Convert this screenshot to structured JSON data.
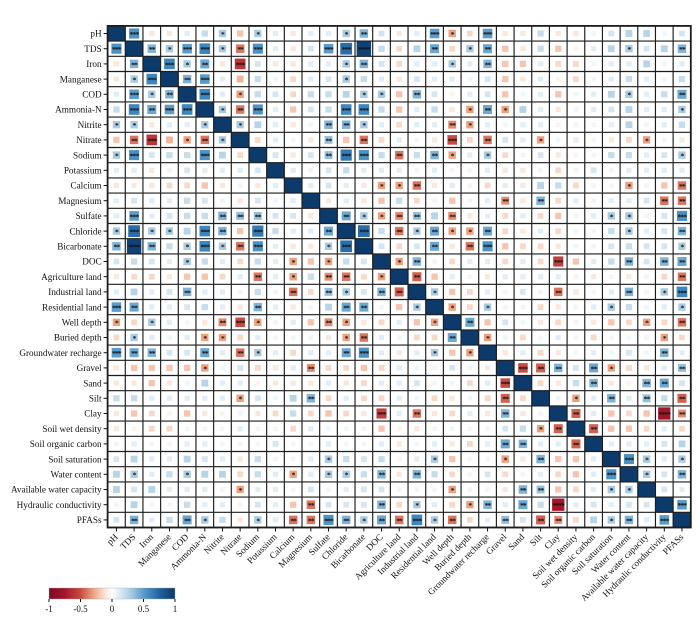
{
  "chart_data": {
    "type": "heatmap",
    "title": "",
    "subtitle": "",
    "legend": "correlation colorbar",
    "variables": [
      "pH",
      "TDS",
      "Iron",
      "Manganese",
      "COD",
      "Ammonia-N",
      "Nitrite",
      "Nitrate",
      "Sodium",
      "Potassium",
      "Calcium",
      "Magnesium",
      "Sulfate",
      "Chloride",
      "Bicarbonate",
      "DOC",
      "Agriculture land",
      "Industrial land",
      "Residential land",
      "Well depth",
      "Buried depth",
      "Groundwater recharge",
      "Gravel",
      "Sand",
      "Silt",
      "Clay",
      "Soil wet density",
      "Soil organic carbon",
      "Soil saturation",
      "Water content",
      "Available water capacity",
      "Hydraulic conductivity",
      "PFASs"
    ],
    "diagonal_value": 1,
    "matrix_upper": [
      [
        0.55,
        -0.1,
        -0.1,
        0.1,
        0.2,
        0.3,
        -0.2,
        0.3,
        0.1,
        -0.1,
        0.1,
        0.1,
        0.3,
        0.4,
        0.15,
        -0.1,
        0.1,
        0.5,
        -0.3,
        -0.15,
        0.5,
        -0.1,
        -0.1,
        0.2,
        -0.1,
        -0.1,
        0.05,
        0.15,
        0.25,
        0.25,
        0.05,
        0.15
      ],
      [
        0.4,
        0.3,
        0.5,
        0.6,
        0.3,
        -0.4,
        0.55,
        0.1,
        -0.1,
        0.15,
        0.5,
        0.7,
        0.95,
        0.2,
        -0.15,
        0.25,
        0.45,
        -0.15,
        0.3,
        0.45,
        -0.2,
        -0.1,
        0.2,
        -0.2,
        -0.05,
        0.1,
        0.25,
        0.3,
        0.15,
        0.25,
        0.4
      ],
      [
        0.6,
        0.3,
        0.45,
        -0.1,
        -0.6,
        0.15,
        -0.1,
        -0.1,
        0.1,
        0.1,
        0.3,
        0.4,
        0.15,
        -0.15,
        0.1,
        0.1,
        0.3,
        0.1,
        0.4,
        -0.2,
        -0.2,
        0.1,
        -0.15,
        -0.15,
        0.05,
        0.1,
        0.1,
        0.25,
        0.05,
        0.1
      ],
      [
        0.4,
        0.5,
        0.1,
        -0.25,
        0.2,
        0.05,
        -0.15,
        0.1,
        0.15,
        0.3,
        0.2,
        0.1,
        -0.1,
        0.15,
        0.1,
        0.1,
        0.05,
        0.15,
        -0.2,
        -0.1,
        0.1,
        -0.05,
        -0.15,
        0.05,
        0.1,
        0.2,
        0.1,
        0.05,
        0.2
      ],
      [
        0.6,
        0.1,
        -0.3,
        0.2,
        0.15,
        -0.15,
        0.2,
        0.2,
        0.25,
        0.3,
        0.3,
        -0.2,
        0.4,
        0.15,
        -0.05,
        0.1,
        0.15,
        -0.2,
        0.05,
        0.1,
        -0.2,
        0.05,
        0.1,
        0.25,
        0.3,
        0.1,
        0.2,
        0.45
      ],
      [
        0.3,
        -0.4,
        0.55,
        0.1,
        -0.2,
        0.15,
        0.2,
        0.6,
        0.6,
        0.2,
        -0.2,
        0.1,
        0.2,
        -0.1,
        -0.3,
        0.45,
        -0.3,
        0.25,
        0.1,
        -0.1,
        0.05,
        0.1,
        0.15,
        0.25,
        0.1,
        0.1,
        0.3
      ],
      [
        0.3,
        0.25,
        0.1,
        -0.1,
        0.05,
        0.4,
        0.4,
        0.3,
        0.1,
        -0.15,
        0.1,
        0.1,
        -0.35,
        -0.3,
        0.1,
        0.05,
        0.1,
        0.1,
        -0.05,
        0.05,
        0.05,
        0.1,
        0.25,
        0.05,
        0.1,
        0.2
      ],
      [
        -0.15,
        0.1,
        0.05,
        -0.1,
        0.35,
        -0.2,
        -0.4,
        -0.15,
        0.1,
        0.05,
        -0.1,
        -0.5,
        -0.15,
        -0.4,
        0.15,
        0.1,
        -0.3,
        0.05,
        0.1,
        -0.05,
        -0.1,
        -0.15,
        -0.3,
        -0.05,
        -0.1
      ],
      [
        0.15,
        -0.1,
        0.15,
        0.35,
        0.65,
        0.55,
        0.2,
        -0.4,
        0.2,
        0.4,
        -0.3,
        0.1,
        0.3,
        -0.15,
        -0.05,
        0.15,
        -0.1,
        -0.05,
        0.05,
        0.2,
        0.2,
        0.1,
        0.15,
        0.3
      ],
      [
        0.1,
        0.05,
        0.15,
        0.2,
        0.1,
        0.1,
        0.1,
        0.05,
        0.1,
        -0.05,
        0.05,
        0.1,
        -0.1,
        -0.1,
        0.05,
        -0.15,
        -0.05,
        0.15,
        0.05,
        0.1,
        0.1,
        0.1,
        0.1
      ],
      [
        0.1,
        0.15,
        0.1,
        -0.1,
        -0.3,
        -0.3,
        -0.4,
        -0.1,
        0.1,
        0.05,
        -0.15,
        0.1,
        -0.1,
        0.25,
        0.2,
        -0.15,
        0.05,
        0.05,
        -0.3,
        0.05,
        -0.2,
        -0.4
      ],
      [
        -0.1,
        0.1,
        -0.1,
        -0.2,
        0.2,
        -0.15,
        0.05,
        -0.2,
        0.05,
        0.1,
        -0.35,
        -0.1,
        0.4,
        -0.15,
        0.1,
        0.05,
        0.1,
        0.1,
        0.15,
        -0.4,
        -0.4
      ],
      [
        0.45,
        0.3,
        -0.3,
        -0.35,
        0.35,
        0.25,
        -0.35,
        -0.1,
        0.1,
        -0.15,
        0.1,
        -0.15,
        -0.2,
        0.05,
        0.1,
        0.3,
        0.3,
        0.05,
        0.15,
        0.55
      ],
      [
        0.7,
        0.2,
        -0.4,
        0.3,
        0.45,
        -0.3,
        -0.3,
        0.45,
        -0.15,
        -0.1,
        0.1,
        -0.15,
        0.05,
        0.05,
        0.2,
        0.3,
        0.1,
        0.15,
        0.4
      ],
      [
        0.15,
        -0.15,
        0.15,
        0.45,
        -0.1,
        -0.4,
        0.55,
        -0.2,
        -0.15,
        -0.15,
        -0.1,
        0.05,
        0.05,
        0.15,
        0.2,
        0.15,
        0.15,
        0.3
      ],
      [
        -0.3,
        0.4,
        0.05,
        -0.15,
        0.1,
        0.1,
        -0.15,
        0.1,
        -0.15,
        -0.55,
        -0.2,
        0.1,
        0.2,
        0.4,
        0.15,
        0.4,
        0.45
      ],
      [
        -0.45,
        -0.2,
        0.1,
        0.05,
        -0.1,
        0.1,
        0.1,
        0.1,
        0.1,
        -0.05,
        -0.1,
        -0.05,
        -0.1,
        0.05,
        -0.15,
        -0.4
      ],
      [
        0.3,
        -0.2,
        -0.15,
        0.1,
        0.05,
        0.15,
        0.05,
        -0.4,
        -0.1,
        0.05,
        0.1,
        0.4,
        0.05,
        0.3,
        0.6
      ],
      [
        -0.3,
        -0.15,
        0.3,
        -0.05,
        0.05,
        -0.15,
        -0.1,
        0.05,
        0.1,
        0.3,
        0.2,
        0.05,
        0.1,
        0.3
      ],
      [
        0.45,
        -0.2,
        0.15,
        0.05,
        -0.1,
        -0.15,
        0.05,
        -0.1,
        -0.2,
        -0.15,
        -0.3,
        -0.15,
        -0.4
      ],
      [
        -0.3,
        0.05,
        -0.15,
        0.05,
        0.1,
        0.05,
        -0.15,
        0.05,
        0.05,
        0.05,
        -0.3,
        -0.15
      ],
      [
        -0.1,
        0.1,
        -0.15,
        -0.1,
        0.05,
        0.1,
        0.05,
        0.15,
        0.05,
        0.4,
        0.1
      ],
      [
        -0.5,
        -0.45,
        0.4,
        0.15,
        0.45,
        -0.3,
        -0.15,
        -0.1,
        0.1,
        0.35
      ],
      [
        -0.15,
        -0.1,
        0.2,
        0.4,
        -0.1,
        -0.05,
        0.4,
        0.45,
        0.15
      ],
      [
        0.05,
        -0.3,
        0.1,
        0.4,
        0.1,
        0.35,
        0.2,
        -0.45
      ],
      [
        -0.45,
        0.1,
        -0.2,
        -0.15,
        -0.2,
        -0.75,
        -0.35
      ],
      [
        -0.45,
        -0.2,
        -0.2,
        -0.15,
        0.1,
        -0.15
      ],
      [
        0.1,
        0.1,
        0.1,
        0.15,
        0.25
      ],
      [
        0.55,
        0.3,
        0.1,
        0.3
      ],
      [
        0.3,
        0.15,
        0.4
      ],
      [
        0.15,
        0.1
      ],
      [
        0.5
      ]
    ],
    "significance_stars": {
      "one": 0.28,
      "two": 0.35,
      "three": 0.5,
      "four": 0.75
    },
    "colormap_anchors": [
      [
        -1,
        "#7a0b22"
      ],
      [
        -0.75,
        "#a5152a"
      ],
      [
        -0.5,
        "#c84a40"
      ],
      [
        -0.3,
        "#efa07e"
      ],
      [
        -0.12,
        "#fae3d6"
      ],
      [
        0,
        "#ffffff"
      ],
      [
        0.12,
        "#dcebf5"
      ],
      [
        0.3,
        "#a9cce3"
      ],
      [
        0.45,
        "#6ba7d1"
      ],
      [
        0.6,
        "#3d87be"
      ],
      [
        0.75,
        "#21629e"
      ],
      [
        1,
        "#0c3a6b"
      ]
    ],
    "diagonal_color": "#0c3a6b",
    "grid_color": "#1c1c1c",
    "star_color": "#0e1c38",
    "colorbar": {
      "min": -1,
      "max": 1,
      "tick_labels": [
        "-1",
        "-0.5",
        "0",
        "0.5",
        "1"
      ]
    },
    "axis_ranges": {
      "rows": 33,
      "cols": 33
    },
    "grid": "on",
    "legend_position": "bottom-left"
  }
}
